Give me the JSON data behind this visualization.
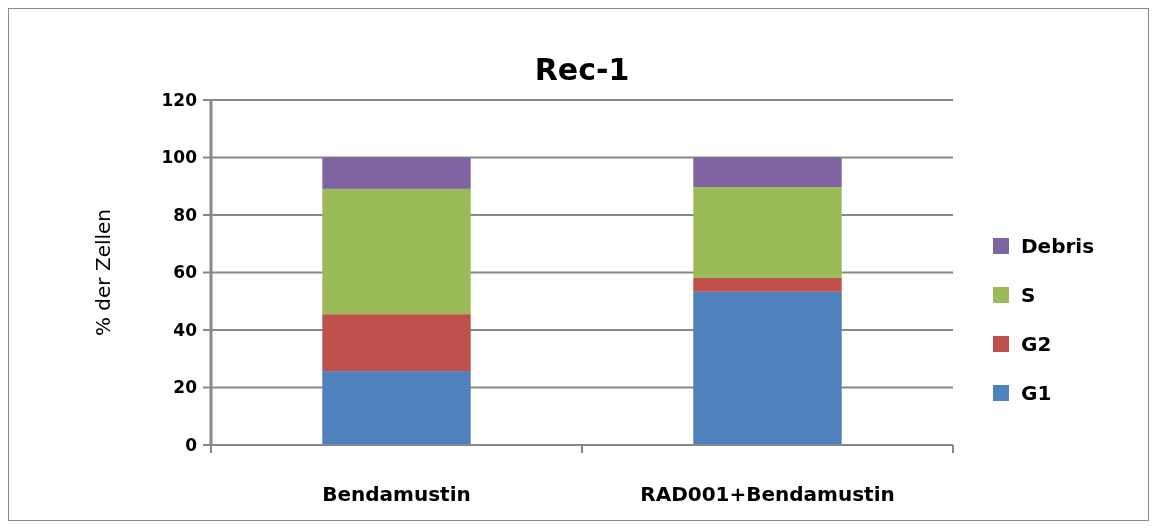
{
  "chart_data": {
    "type": "bar",
    "title": "Rec-1",
    "ylabel": "% der Zellen",
    "categories": [
      "Bendamustin",
      "RAD001+Bendamustin"
    ],
    "stacked": true,
    "ylim": [
      0,
      120
    ],
    "yticks": [
      0,
      20,
      40,
      60,
      80,
      100,
      120
    ],
    "grid": "y",
    "legend": "right",
    "series": [
      {
        "name": "G1",
        "color": "#4f81bd",
        "values": [
          25.7,
          53.3
        ]
      },
      {
        "name": "G2",
        "color": "#c0504d",
        "values": [
          19.8,
          4.8
        ]
      },
      {
        "name": "S",
        "color": "#9bbb59",
        "values": [
          43.6,
          31.6
        ]
      },
      {
        "name": "Debris",
        "color": "#8064a2",
        "values": [
          10.9,
          10.3
        ]
      }
    ]
  }
}
